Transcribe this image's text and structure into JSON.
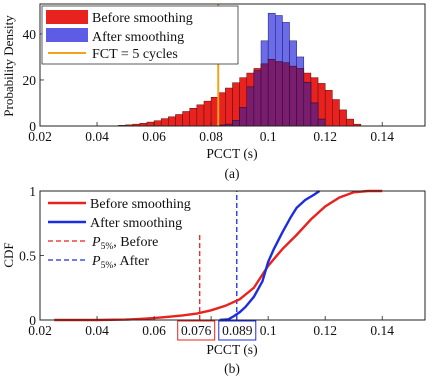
{
  "colors": {
    "before": "#e8231f",
    "after": "#5c5ce6",
    "overlap": "#7a1d6e",
    "fct": "#f2a31b",
    "after_line": "#1b2de0"
  },
  "chart_data": [
    {
      "panel_label": "(a)",
      "type": "bar",
      "xlabel": "PCCT (s)",
      "ylabel": "Probability Density",
      "xlim": [
        0.02,
        0.155
      ],
      "ylim": [
        0,
        53
      ],
      "xticks": [
        "0.02",
        "0.04",
        "0.06",
        "0.08",
        "0.1",
        "0.12",
        "0.14"
      ],
      "yticks": [
        "0",
        "20",
        "40"
      ],
      "bin_width": 0.0025,
      "legend": {
        "placement": "top-left",
        "before": "Before smoothing",
        "after": "After smoothing",
        "fct": "FCT = 5 cycles"
      },
      "fct_x": 0.0825,
      "series": [
        {
          "name": "Before smoothing",
          "bin_starts": [
            0.0475,
            0.05,
            0.0525,
            0.055,
            0.0575,
            0.06,
            0.0625,
            0.065,
            0.0675,
            0.07,
            0.0725,
            0.075,
            0.0775,
            0.08,
            0.0825,
            0.085,
            0.0875,
            0.09,
            0.0925,
            0.095,
            0.0975,
            0.1,
            0.1025,
            0.105,
            0.1075,
            0.11,
            0.1125,
            0.115,
            0.1175,
            0.12,
            0.1225,
            0.125,
            0.1275,
            0.13
          ],
          "values": [
            0.3,
            0.5,
            0.8,
            1.2,
            1.7,
            2.3,
            3.2,
            4.0,
            5.0,
            6.3,
            7.7,
            9.2,
            10.8,
            12.5,
            14.5,
            16.5,
            18.8,
            21,
            23,
            25,
            27,
            29,
            28,
            27.5,
            26,
            25,
            23,
            21,
            18.5,
            15.5,
            11.5,
            7,
            3,
            0.8
          ]
        },
        {
          "name": "After smoothing",
          "bin_starts": [
            0.0825,
            0.085,
            0.0875,
            0.09,
            0.0925,
            0.095,
            0.0975,
            0.1,
            0.1025,
            0.105,
            0.1075,
            0.11,
            0.1125,
            0.115,
            0.1175
          ],
          "values": [
            0.4,
            0.8,
            2.5,
            8,
            17,
            24,
            37,
            49,
            48,
            45,
            37,
            30,
            19,
            10,
            3
          ]
        }
      ]
    },
    {
      "panel_label": "(b)",
      "type": "line",
      "xlabel": "PCCT (s)",
      "ylabel": "CDF",
      "xlim": [
        0.02,
        0.155
      ],
      "ylim": [
        0,
        1
      ],
      "xticks": [
        "0.02",
        "0.04",
        "0.06",
        "0.08",
        "0.1",
        "0.12",
        "0.14"
      ],
      "yticks": [
        "0",
        "0.5",
        "1"
      ],
      "legend": {
        "placement": "top-left",
        "before": "Before smoothing",
        "after": "After smoothing",
        "p5_before_prefix": ", Before",
        "p5_after_prefix": ", After"
      },
      "p5_symbol": "P",
      "p5_subscript": "5%",
      "p5_before": 0.076,
      "p5_after": 0.089,
      "p5_before_label": "0.076",
      "p5_after_label": "0.089",
      "series": [
        {
          "name": "Before smoothing",
          "x": [
            0.025,
            0.04,
            0.05,
            0.055,
            0.06,
            0.065,
            0.07,
            0.075,
            0.08,
            0.085,
            0.09,
            0.095,
            0.1,
            0.105,
            0.11,
            0.115,
            0.12,
            0.125,
            0.13,
            0.135,
            0.14
          ],
          "y": [
            0,
            0,
            0.003,
            0.008,
            0.015,
            0.025,
            0.035,
            0.05,
            0.075,
            0.11,
            0.16,
            0.25,
            0.42,
            0.55,
            0.66,
            0.78,
            0.88,
            0.95,
            0.99,
            1.0,
            1.0
          ]
        },
        {
          "name": "After smoothing",
          "x": [
            0.083,
            0.086,
            0.088,
            0.09,
            0.092,
            0.095,
            0.098,
            0.1,
            0.102,
            0.105,
            0.108,
            0.11,
            0.113,
            0.116,
            0.118
          ],
          "y": [
            0,
            0.005,
            0.03,
            0.06,
            0.1,
            0.18,
            0.3,
            0.45,
            0.55,
            0.68,
            0.8,
            0.87,
            0.93,
            0.97,
            1.0
          ]
        }
      ]
    }
  ]
}
